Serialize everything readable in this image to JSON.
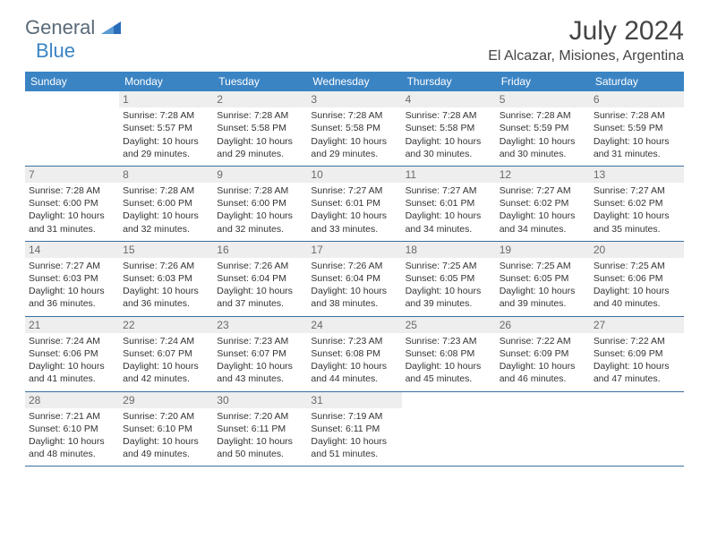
{
  "brand": {
    "name1": "General",
    "name2": "Blue"
  },
  "month_title": "July 2024",
  "location": "El Alcazar, Misiones, Argentina",
  "colors": {
    "header_bg": "#3b84c4",
    "border": "#3b6fa0",
    "daynum_bg": "#eeeeee",
    "text": "#333333"
  },
  "weekdays": [
    "Sunday",
    "Monday",
    "Tuesday",
    "Wednesday",
    "Thursday",
    "Friday",
    "Saturday"
  ],
  "weeks": [
    [
      {
        "num": "",
        "sunrise": "",
        "sunset": "",
        "daylight": ""
      },
      {
        "num": "1",
        "sunrise": "Sunrise: 7:28 AM",
        "sunset": "Sunset: 5:57 PM",
        "daylight": "Daylight: 10 hours and 29 minutes."
      },
      {
        "num": "2",
        "sunrise": "Sunrise: 7:28 AM",
        "sunset": "Sunset: 5:58 PM",
        "daylight": "Daylight: 10 hours and 29 minutes."
      },
      {
        "num": "3",
        "sunrise": "Sunrise: 7:28 AM",
        "sunset": "Sunset: 5:58 PM",
        "daylight": "Daylight: 10 hours and 29 minutes."
      },
      {
        "num": "4",
        "sunrise": "Sunrise: 7:28 AM",
        "sunset": "Sunset: 5:58 PM",
        "daylight": "Daylight: 10 hours and 30 minutes."
      },
      {
        "num": "5",
        "sunrise": "Sunrise: 7:28 AM",
        "sunset": "Sunset: 5:59 PM",
        "daylight": "Daylight: 10 hours and 30 minutes."
      },
      {
        "num": "6",
        "sunrise": "Sunrise: 7:28 AM",
        "sunset": "Sunset: 5:59 PM",
        "daylight": "Daylight: 10 hours and 31 minutes."
      }
    ],
    [
      {
        "num": "7",
        "sunrise": "Sunrise: 7:28 AM",
        "sunset": "Sunset: 6:00 PM",
        "daylight": "Daylight: 10 hours and 31 minutes."
      },
      {
        "num": "8",
        "sunrise": "Sunrise: 7:28 AM",
        "sunset": "Sunset: 6:00 PM",
        "daylight": "Daylight: 10 hours and 32 minutes."
      },
      {
        "num": "9",
        "sunrise": "Sunrise: 7:28 AM",
        "sunset": "Sunset: 6:00 PM",
        "daylight": "Daylight: 10 hours and 32 minutes."
      },
      {
        "num": "10",
        "sunrise": "Sunrise: 7:27 AM",
        "sunset": "Sunset: 6:01 PM",
        "daylight": "Daylight: 10 hours and 33 minutes."
      },
      {
        "num": "11",
        "sunrise": "Sunrise: 7:27 AM",
        "sunset": "Sunset: 6:01 PM",
        "daylight": "Daylight: 10 hours and 34 minutes."
      },
      {
        "num": "12",
        "sunrise": "Sunrise: 7:27 AM",
        "sunset": "Sunset: 6:02 PM",
        "daylight": "Daylight: 10 hours and 34 minutes."
      },
      {
        "num": "13",
        "sunrise": "Sunrise: 7:27 AM",
        "sunset": "Sunset: 6:02 PM",
        "daylight": "Daylight: 10 hours and 35 minutes."
      }
    ],
    [
      {
        "num": "14",
        "sunrise": "Sunrise: 7:27 AM",
        "sunset": "Sunset: 6:03 PM",
        "daylight": "Daylight: 10 hours and 36 minutes."
      },
      {
        "num": "15",
        "sunrise": "Sunrise: 7:26 AM",
        "sunset": "Sunset: 6:03 PM",
        "daylight": "Daylight: 10 hours and 36 minutes."
      },
      {
        "num": "16",
        "sunrise": "Sunrise: 7:26 AM",
        "sunset": "Sunset: 6:04 PM",
        "daylight": "Daylight: 10 hours and 37 minutes."
      },
      {
        "num": "17",
        "sunrise": "Sunrise: 7:26 AM",
        "sunset": "Sunset: 6:04 PM",
        "daylight": "Daylight: 10 hours and 38 minutes."
      },
      {
        "num": "18",
        "sunrise": "Sunrise: 7:25 AM",
        "sunset": "Sunset: 6:05 PM",
        "daylight": "Daylight: 10 hours and 39 minutes."
      },
      {
        "num": "19",
        "sunrise": "Sunrise: 7:25 AM",
        "sunset": "Sunset: 6:05 PM",
        "daylight": "Daylight: 10 hours and 39 minutes."
      },
      {
        "num": "20",
        "sunrise": "Sunrise: 7:25 AM",
        "sunset": "Sunset: 6:06 PM",
        "daylight": "Daylight: 10 hours and 40 minutes."
      }
    ],
    [
      {
        "num": "21",
        "sunrise": "Sunrise: 7:24 AM",
        "sunset": "Sunset: 6:06 PM",
        "daylight": "Daylight: 10 hours and 41 minutes."
      },
      {
        "num": "22",
        "sunrise": "Sunrise: 7:24 AM",
        "sunset": "Sunset: 6:07 PM",
        "daylight": "Daylight: 10 hours and 42 minutes."
      },
      {
        "num": "23",
        "sunrise": "Sunrise: 7:23 AM",
        "sunset": "Sunset: 6:07 PM",
        "daylight": "Daylight: 10 hours and 43 minutes."
      },
      {
        "num": "24",
        "sunrise": "Sunrise: 7:23 AM",
        "sunset": "Sunset: 6:08 PM",
        "daylight": "Daylight: 10 hours and 44 minutes."
      },
      {
        "num": "25",
        "sunrise": "Sunrise: 7:23 AM",
        "sunset": "Sunset: 6:08 PM",
        "daylight": "Daylight: 10 hours and 45 minutes."
      },
      {
        "num": "26",
        "sunrise": "Sunrise: 7:22 AM",
        "sunset": "Sunset: 6:09 PM",
        "daylight": "Daylight: 10 hours and 46 minutes."
      },
      {
        "num": "27",
        "sunrise": "Sunrise: 7:22 AM",
        "sunset": "Sunset: 6:09 PM",
        "daylight": "Daylight: 10 hours and 47 minutes."
      }
    ],
    [
      {
        "num": "28",
        "sunrise": "Sunrise: 7:21 AM",
        "sunset": "Sunset: 6:10 PM",
        "daylight": "Daylight: 10 hours and 48 minutes."
      },
      {
        "num": "29",
        "sunrise": "Sunrise: 7:20 AM",
        "sunset": "Sunset: 6:10 PM",
        "daylight": "Daylight: 10 hours and 49 minutes."
      },
      {
        "num": "30",
        "sunrise": "Sunrise: 7:20 AM",
        "sunset": "Sunset: 6:11 PM",
        "daylight": "Daylight: 10 hours and 50 minutes."
      },
      {
        "num": "31",
        "sunrise": "Sunrise: 7:19 AM",
        "sunset": "Sunset: 6:11 PM",
        "daylight": "Daylight: 10 hours and 51 minutes."
      },
      {
        "num": "",
        "sunrise": "",
        "sunset": "",
        "daylight": ""
      },
      {
        "num": "",
        "sunrise": "",
        "sunset": "",
        "daylight": ""
      },
      {
        "num": "",
        "sunrise": "",
        "sunset": "",
        "daylight": ""
      }
    ]
  ]
}
